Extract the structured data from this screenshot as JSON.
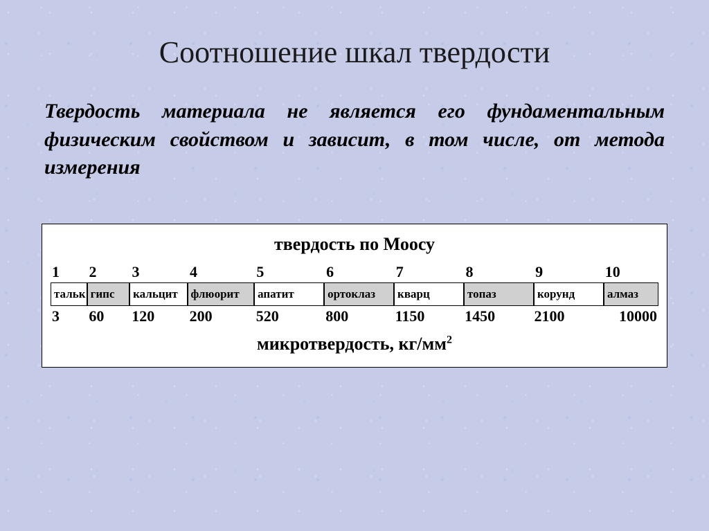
{
  "title": "Соотношение шкал твердости",
  "description": "Твердость материала не является его фундаментальным физическим свойством и зависит, в том числе, от метода измерения",
  "chart": {
    "top_label": "твердость по Моосу",
    "bottom_label_prefix": "микротвердость, кг/мм",
    "bottom_label_sup": "2",
    "items": [
      {
        "mohs": "1",
        "name": "тальк",
        "micro": "3",
        "shaded": false,
        "width": 6.0
      },
      {
        "mohs": "2",
        "name": "гипс",
        "micro": "60",
        "shaded": true,
        "width": 7.0
      },
      {
        "mohs": "3",
        "name": "кальцит",
        "micro": "120",
        "shaded": false,
        "width": 9.5
      },
      {
        "mohs": "4",
        "name": "флюорит",
        "micro": "200",
        "shaded": true,
        "width": 11.0
      },
      {
        "mohs": "5",
        "name": "апатит",
        "micro": "520",
        "shaded": false,
        "width": 11.5
      },
      {
        "mohs": "6",
        "name": "ортоклаз",
        "micro": "800",
        "shaded": true,
        "width": 11.5
      },
      {
        "mohs": "7",
        "name": "кварц",
        "micro": "1150",
        "shaded": false,
        "width": 11.5
      },
      {
        "mohs": "8",
        "name": "топаз",
        "micro": "1450",
        "shaded": true,
        "width": 11.5
      },
      {
        "mohs": "9",
        "name": "корунд",
        "micro": "2100",
        "shaded": false,
        "width": 11.5
      },
      {
        "mohs": "10",
        "name": "алмаз",
        "micro": "10000",
        "shaded": true,
        "width": 9.0
      }
    ]
  }
}
